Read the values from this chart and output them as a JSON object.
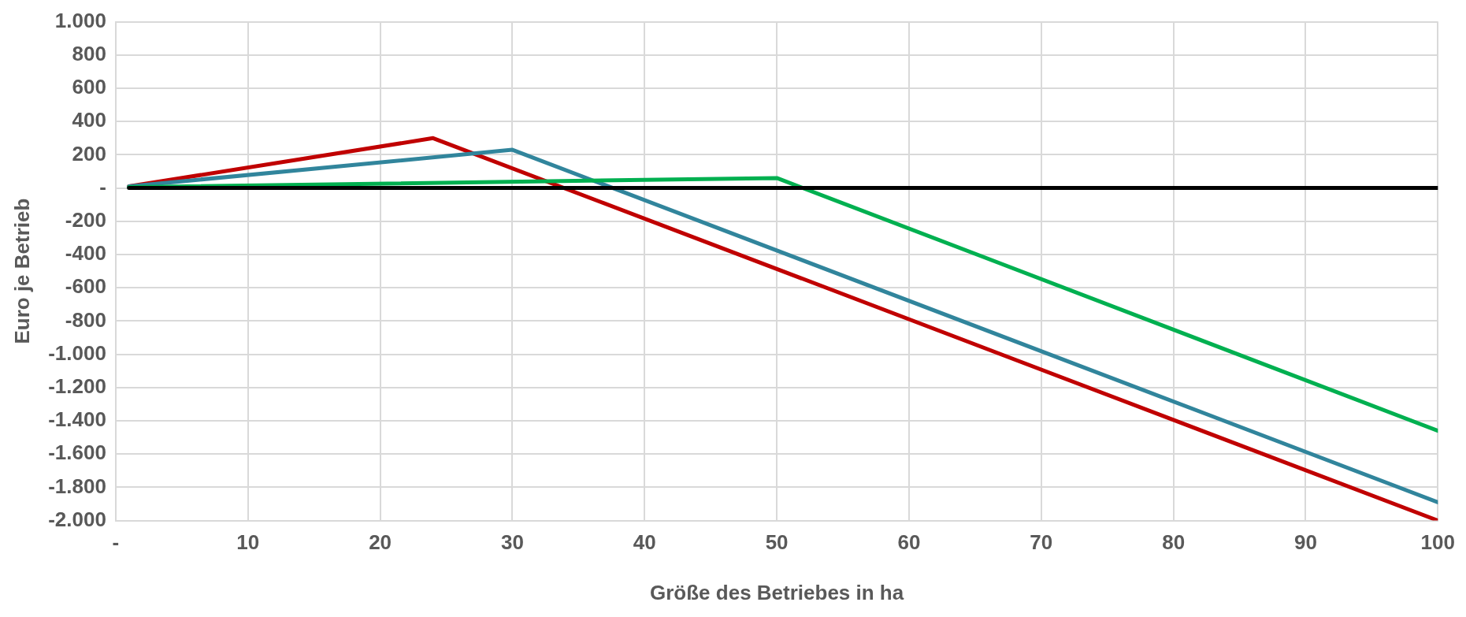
{
  "chart_data": {
    "type": "line",
    "xlabel": "Größe des Betriebes in ha",
    "ylabel": "Euro je Betrieb",
    "xlim": [
      0,
      100
    ],
    "xticks": [
      {
        "value": 0,
        "label": "-"
      },
      10,
      20,
      30,
      40,
      50,
      60,
      70,
      80,
      90,
      100
    ],
    "ylim": [
      -2000,
      1000
    ],
    "yticks": [
      {
        "value": -2000,
        "label": "-2.000"
      },
      {
        "value": -1800,
        "label": "-1.800"
      },
      {
        "value": -1600,
        "label": "-1.600"
      },
      {
        "value": -1400,
        "label": "-1.400"
      },
      {
        "value": -1200,
        "label": "-1.200"
      },
      {
        "value": -1000,
        "label": "-1.000"
      },
      -800,
      -600,
      -400,
      -200,
      {
        "value": 0,
        "label": "-"
      },
      200,
      400,
      600,
      800,
      {
        "value": 1000,
        "label": "1.000"
      }
    ],
    "grid": true,
    "legend": false,
    "marker": "none",
    "line_style": "solid",
    "series": [
      {
        "color": "#000000",
        "x": [
          1,
          100
        ],
        "values": [
          0,
          0
        ]
      },
      {
        "color": "#00b050",
        "x": [
          1,
          50,
          100
        ],
        "values": [
          5,
          60,
          -1460
        ]
      },
      {
        "color": "#31859c",
        "x": [
          1,
          30,
          100
        ],
        "values": [
          10,
          230,
          -1890
        ]
      },
      {
        "color": "#c00000",
        "x": [
          1,
          24,
          100
        ],
        "values": [
          10,
          300,
          -2000
        ]
      }
    ]
  }
}
